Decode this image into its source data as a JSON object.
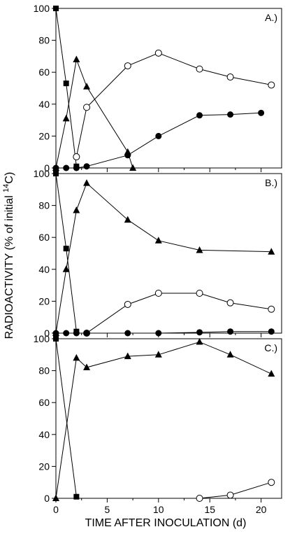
{
  "chart_data": [
    {
      "type": "line",
      "panel_label": "A.)",
      "xlim": [
        0,
        22
      ],
      "ylim": [
        0,
        100
      ],
      "x_ticks": [
        0,
        5,
        10,
        15,
        20
      ],
      "y_ticks": [
        0,
        20,
        40,
        60,
        80,
        100
      ],
      "series": [
        {
          "marker": "square",
          "x": [
            0,
            1,
            2
          ],
          "y": [
            100,
            53,
            1
          ]
        },
        {
          "marker": "triangle",
          "x": [
            0,
            1,
            2,
            3,
            7,
            7.5
          ],
          "y": [
            0,
            31,
            68,
            51,
            10,
            0
          ]
        },
        {
          "marker": "open-circle",
          "x": [
            2,
            3,
            7,
            10,
            14,
            17,
            21
          ],
          "y": [
            7,
            38,
            64,
            72,
            62,
            57,
            52
          ]
        },
        {
          "marker": "filled-circle",
          "x": [
            0,
            1,
            2,
            3,
            7,
            10,
            14,
            17,
            20
          ],
          "y": [
            0,
            0,
            0,
            1,
            8,
            20,
            33,
            33.5,
            34.5
          ]
        }
      ]
    },
    {
      "type": "line",
      "panel_label": "B.)",
      "xlim": [
        0,
        22
      ],
      "ylim": [
        0,
        100
      ],
      "x_ticks": [
        0,
        5,
        10,
        15,
        20
      ],
      "y_ticks": [
        0,
        20,
        40,
        60,
        80,
        100
      ],
      "series": [
        {
          "marker": "square",
          "x": [
            0,
            1,
            2
          ],
          "y": [
            100,
            53,
            1
          ]
        },
        {
          "marker": "triangle",
          "x": [
            0,
            1,
            2,
            3,
            7,
            10,
            14,
            21
          ],
          "y": [
            0,
            40,
            77,
            94,
            71,
            58,
            52,
            51
          ]
        },
        {
          "marker": "open-circle",
          "x": [
            3,
            7,
            10,
            14,
            17,
            21
          ],
          "y": [
            0,
            18,
            25,
            25,
            19,
            15
          ]
        },
        {
          "marker": "filled-circle",
          "x": [
            0,
            1,
            2,
            3,
            7,
            10,
            14,
            17,
            21
          ],
          "y": [
            0,
            0,
            0,
            0,
            0,
            0,
            0.5,
            1,
            1
          ]
        }
      ]
    },
    {
      "type": "line",
      "panel_label": "C.)",
      "xlim": [
        0,
        22
      ],
      "ylim": [
        0,
        100
      ],
      "x_ticks": [
        0,
        5,
        10,
        15,
        20
      ],
      "y_ticks": [
        0,
        20,
        40,
        60,
        80,
        100
      ],
      "series": [
        {
          "marker": "square",
          "x": [
            0,
            2
          ],
          "y": [
            100,
            1
          ]
        },
        {
          "marker": "triangle",
          "x": [
            0,
            2,
            3,
            7,
            10,
            14,
            17,
            21
          ],
          "y": [
            0,
            88,
            82,
            89,
            90,
            98,
            90,
            78
          ]
        },
        {
          "marker": "open-circle",
          "x": [
            14,
            17,
            21
          ],
          "y": [
            0,
            2,
            10
          ]
        }
      ]
    }
  ],
  "ylabel_main": "RADIOACTIVITY (% of initial ",
  "ylabel_sup": "14",
  "ylabel_end": "C)",
  "xlabel": "TIME AFTER INOCULATION (d)"
}
